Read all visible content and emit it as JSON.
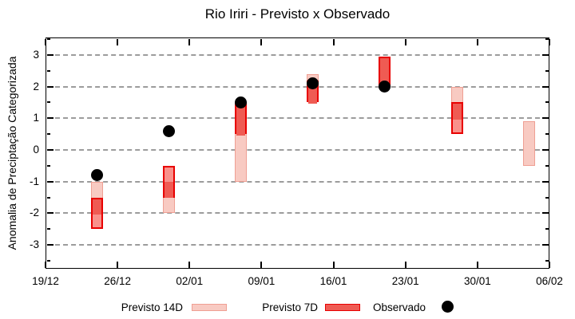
{
  "title": "Rio Iriri - Previsto x Observado",
  "y_axis": {
    "label": "Anomalia de Preciptação Categorizada",
    "tick_values": [
      3,
      2,
      1,
      0,
      -1,
      -2,
      -3
    ],
    "tick_labels": [
      "3",
      "2",
      "1",
      "0",
      "-1",
      "-2",
      "-3"
    ]
  },
  "x_axis": {
    "tick_labels": [
      "19/12",
      "26/12",
      "02/01",
      "09/01",
      "16/01",
      "23/01",
      "30/01",
      "06/02"
    ],
    "tick_days": [
      0,
      7,
      14,
      21,
      28,
      35,
      42,
      49
    ]
  },
  "legend": {
    "items": [
      {
        "label": "Previsto 14D",
        "swatch": "pink-box"
      },
      {
        "label": "Previsto 7D",
        "swatch": "red-box"
      },
      {
        "label": "Observado",
        "swatch": "black-dot"
      }
    ]
  },
  "colors": {
    "forecast14_fill": "#f8cac2",
    "forecast14_border": "#ef9f93",
    "forecast7_fill": "#f9918b",
    "forecast7_overlap_fill": "#ef5b53",
    "forecast7_border": "#e80000",
    "observed": "#000000",
    "gridline": "#9c9c9c"
  },
  "chart_data": {
    "type": "bar",
    "subtype": "range-bars-with-scatter",
    "title": "Rio Iriri - Previsto x Observado",
    "xlabel": "",
    "ylabel": "Anomalia de Preciptação Categorizada",
    "ylim": [
      -3.75,
      3.55
    ],
    "yticks": [
      -3,
      -2,
      -1,
      0,
      1,
      2,
      3
    ],
    "grid": "horizontal-dashed",
    "legend_position": "bottom-center",
    "x_tick_labels": [
      "19/12",
      "26/12",
      "02/01",
      "09/01",
      "16/01",
      "23/01",
      "30/01",
      "06/02"
    ],
    "x_tick_days": [
      0,
      7,
      14,
      21,
      28,
      35,
      42,
      49
    ],
    "series": [
      {
        "name": "Previsto 14D",
        "type": "range-bar",
        "points": [
          {
            "day": 5,
            "low": -2.0,
            "high": -1.0
          },
          {
            "day": 12,
            "low": -2.0,
            "high": -1.0
          },
          {
            "day": 19,
            "low": -1.0,
            "high": 1.5
          },
          {
            "day": 26,
            "low": 1.5,
            "high": 2.4
          },
          {
            "day": 33,
            "low": 2.0,
            "high": 2.95
          },
          {
            "day": 40,
            "low": 1.0,
            "high": 2.0
          },
          {
            "day": 47,
            "low": -0.5,
            "high": 0.9
          }
        ]
      },
      {
        "name": "Previsto 7D",
        "type": "range-bar",
        "points": [
          {
            "day": 5,
            "low": -2.5,
            "high": -1.5
          },
          {
            "day": 12,
            "low": -1.5,
            "high": -0.5
          },
          {
            "day": 19,
            "low": 0.5,
            "high": 1.5
          },
          {
            "day": 26,
            "low": 1.5,
            "high": 2.2
          },
          {
            "day": 33,
            "low": 2.0,
            "high": 2.95
          },
          {
            "day": 40,
            "low": 0.5,
            "high": 1.5
          }
        ]
      },
      {
        "name": "Observado",
        "type": "scatter",
        "points": [
          {
            "day": 5,
            "value": -0.8
          },
          {
            "day": 12,
            "value": 0.6
          },
          {
            "day": 19,
            "value": 1.5
          },
          {
            "day": 26,
            "value": 2.1
          },
          {
            "day": 33,
            "value": 2.0
          }
        ]
      }
    ]
  }
}
